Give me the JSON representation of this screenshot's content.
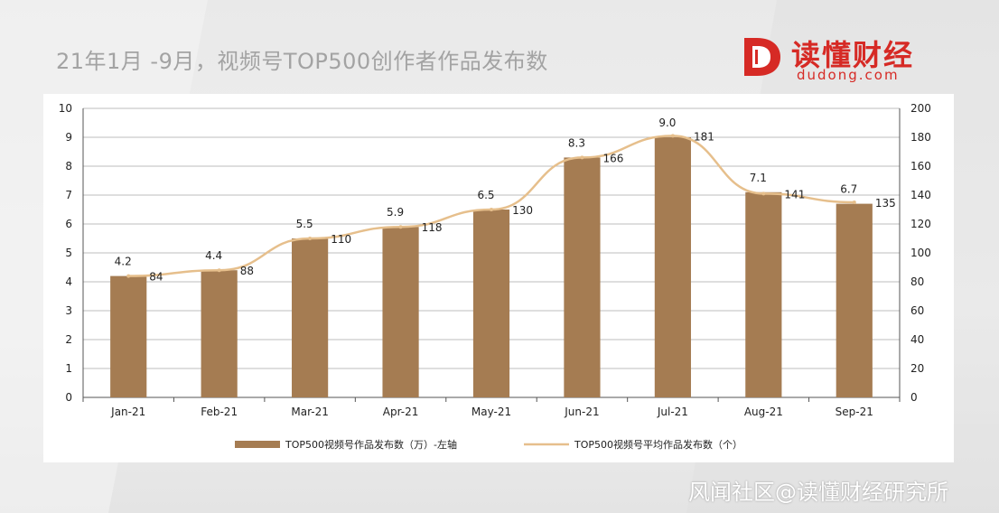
{
  "title": "21年1月 -9月，视频号TOP500创作者作品发布数",
  "logo": {
    "cn": "读懂财经",
    "en": "dudong.com",
    "color": "#d62a25"
  },
  "watermark": "风闻社区@读懂财经研究所",
  "chart_data": {
    "type": "bar",
    "categories": [
      "Jan-21",
      "Feb-21",
      "Mar-21",
      "Apr-21",
      "May-21",
      "Jun-21",
      "Jul-21",
      "Aug-21",
      "Sep-21"
    ],
    "series": [
      {
        "name": "TOP500视频号作品发布数（万）-左轴",
        "type": "bar",
        "axis": "left",
        "values": [
          4.2,
          4.4,
          5.5,
          5.9,
          6.5,
          8.3,
          9.0,
          7.1,
          6.7
        ],
        "color": "#a57c52"
      },
      {
        "name": "TOP500视频号平均作品发布数（个）",
        "type": "line",
        "axis": "right",
        "values": [
          84,
          88,
          110,
          118,
          130,
          166,
          181,
          141,
          135
        ],
        "color": "#e6bf8c"
      }
    ],
    "y_left": {
      "min": 0,
      "max": 10,
      "ticks": [
        0,
        1,
        2,
        3,
        4,
        5,
        6,
        7,
        8,
        9,
        10
      ]
    },
    "y_right": {
      "min": 0,
      "max": 200,
      "ticks": [
        0,
        20,
        40,
        60,
        80,
        100,
        120,
        140,
        160,
        180,
        200
      ]
    },
    "grid": true,
    "legend_position": "bottom"
  }
}
